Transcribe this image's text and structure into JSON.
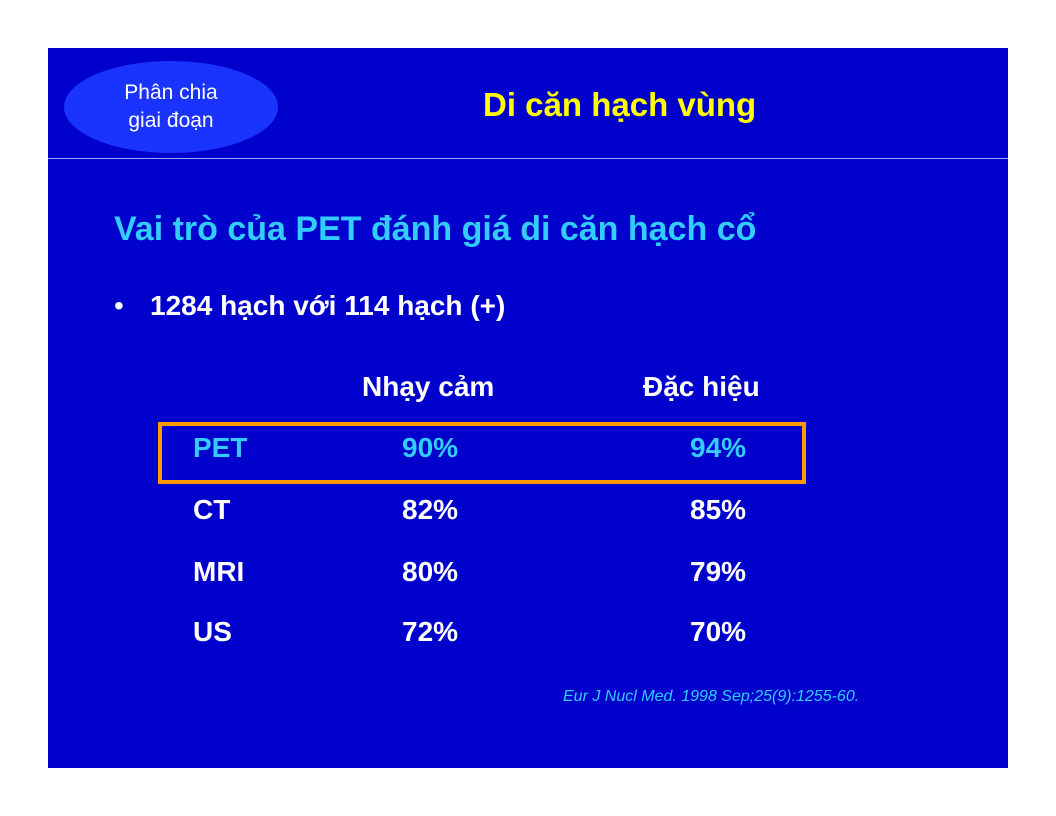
{
  "badge": {
    "line1": "Phân chia",
    "line2": "giai đoạn"
  },
  "header": {
    "title": "Di căn hạch vùng"
  },
  "heading": "Vai trò của PET đánh giá di căn hạch cổ",
  "bullet": {
    "marker": "•",
    "text": "1284 hạch với 114 hạch (+)"
  },
  "table": {
    "columns": [
      "Nhạy cảm",
      "Đặc hiệu"
    ],
    "rows": [
      {
        "modality": "PET",
        "sensitivity": "90%",
        "specificity": "94%"
      },
      {
        "modality": "CT",
        "sensitivity": "82%",
        "specificity": "85%"
      },
      {
        "modality": "MRI",
        "sensitivity": "80%",
        "specificity": "79%"
      },
      {
        "modality": "US",
        "sensitivity": "72%",
        "specificity": "70%"
      }
    ]
  },
  "citation": "Eur J Nucl Med. 1998 Sep;25(9):1255-60.",
  "colors": {
    "background": "#0000cc",
    "title": "#ffff00",
    "heading": "#33ccff",
    "highlight_border": "#ff9900"
  }
}
